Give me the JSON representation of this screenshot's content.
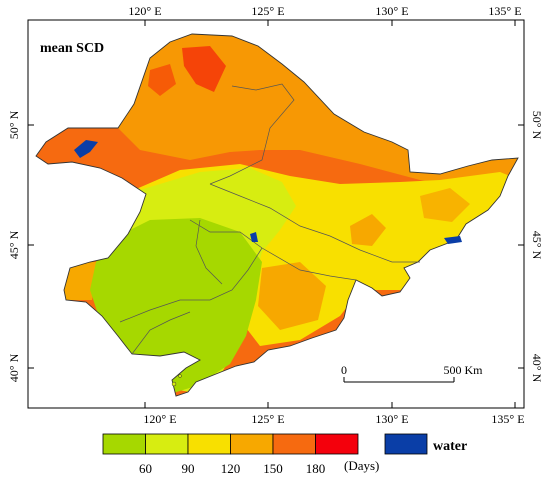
{
  "map": {
    "title": "mean SCD",
    "top_ticks": [
      "120° E",
      "125° E",
      "130° E",
      "135° E"
    ],
    "bottom_ticks": [
      "120° E",
      "125° E",
      "130° E",
      "135° E"
    ],
    "left_ticks": [
      "50° N",
      "45° N",
      "40° N"
    ],
    "right_ticks": [
      "50° N",
      "45° N",
      "40° N"
    ],
    "scale_bar": {
      "start_label": "0",
      "end_label": "500 Km"
    }
  },
  "legend": {
    "bins": [
      {
        "color": "#a6d800"
      },
      {
        "color": "#d7ed11"
      },
      {
        "color": "#f8e000"
      },
      {
        "color": "#f7a800"
      },
      {
        "color": "#f66a10"
      },
      {
        "color": "#f4000c"
      }
    ],
    "break_labels": [
      "60",
      "90",
      "120",
      "150",
      "180"
    ],
    "unit_label": "(Days)",
    "water": {
      "label": "water",
      "color": "#0a3ea7"
    }
  }
}
